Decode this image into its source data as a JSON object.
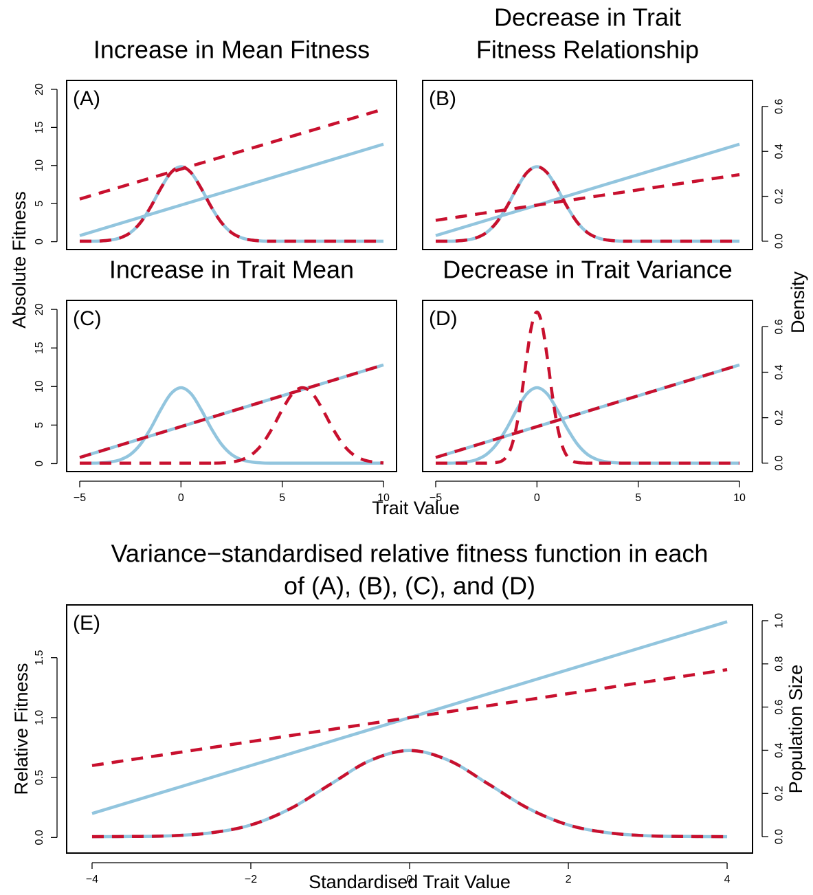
{
  "chart_data": [
    {
      "type": "line",
      "title": "Increase in Mean Fitness",
      "label": "(A)",
      "xlim": [
        -5.645,
        10.645
      ],
      "ylim": [
        -1.03,
        21.17
      ],
      "y2lim": [
        -0.037,
        0.716
      ],
      "yticks": [
        0,
        5,
        10,
        15,
        20
      ],
      "series": [
        {
          "color": "#92c5de",
          "style": "solid",
          "x": [
            -5,
            10
          ],
          "values": [
            0.8,
            12.8
          ]
        },
        {
          "color": "#92c5de",
          "style": "solid",
          "axis": "y2",
          "x": [
            -5,
            -4.5,
            -4,
            -3.5,
            -3,
            -2.5,
            -2,
            -1.5,
            -1,
            -0.5,
            0,
            0.5,
            1,
            1.5,
            2,
            2.5,
            3,
            3.5,
            4,
            4.5,
            5,
            10
          ],
          "values": [
            0,
            0,
            0.001,
            0.005,
            0.015,
            0.038,
            0.083,
            0.152,
            0.235,
            0.305,
            0.332,
            0.305,
            0.235,
            0.152,
            0.083,
            0.038,
            0.015,
            0.005,
            0.001,
            0,
            0,
            0
          ]
        },
        {
          "color": "#c8102e",
          "style": "dashed",
          "x": [
            -5,
            10
          ],
          "values": [
            5.6,
            17.4
          ]
        },
        {
          "color": "#c8102e",
          "style": "dashed",
          "axis": "y2",
          "x": [
            -5,
            -4.5,
            -4,
            -3.5,
            -3,
            -2.5,
            -2,
            -1.5,
            -1,
            -0.5,
            0,
            0.5,
            1,
            1.5,
            2,
            2.5,
            3,
            3.5,
            4,
            4.5,
            5,
            10
          ],
          "values": [
            0,
            0,
            0.001,
            0.005,
            0.015,
            0.038,
            0.083,
            0.152,
            0.235,
            0.305,
            0.332,
            0.305,
            0.235,
            0.152,
            0.083,
            0.038,
            0.015,
            0.005,
            0.001,
            0,
            0,
            0
          ]
        }
      ]
    },
    {
      "type": "line",
      "title": [
        "Decrease in Trait",
        "Fitness Relationship"
      ],
      "label": "(B)",
      "xlim": [
        -5.645,
        10.645
      ],
      "ylim": [
        -1.03,
        21.17
      ],
      "y2lim": [
        -0.037,
        0.716
      ],
      "y2ticks": [
        {
          "value": 0,
          "label": "0.0"
        },
        0.2,
        0.4,
        0.6
      ],
      "series": [
        {
          "color": "#92c5de",
          "style": "solid",
          "x": [
            -5,
            10
          ],
          "values": [
            0.8,
            12.8
          ]
        },
        {
          "color": "#92c5de",
          "style": "solid",
          "axis": "y2",
          "x": [
            -5,
            -4.5,
            -4,
            -3.5,
            -3,
            -2.5,
            -2,
            -1.5,
            -1,
            -0.5,
            0,
            0.5,
            1,
            1.5,
            2,
            2.5,
            3,
            3.5,
            4,
            4.5,
            5,
            10
          ],
          "values": [
            0,
            0,
            0.001,
            0.005,
            0.015,
            0.038,
            0.083,
            0.152,
            0.235,
            0.305,
            0.332,
            0.305,
            0.235,
            0.152,
            0.083,
            0.038,
            0.015,
            0.005,
            0.001,
            0,
            0,
            0
          ]
        },
        {
          "color": "#c8102e",
          "style": "dashed",
          "x": [
            -5,
            10
          ],
          "values": [
            2.8,
            8.8
          ]
        },
        {
          "color": "#c8102e",
          "style": "dashed",
          "axis": "y2",
          "x": [
            -5,
            -4.5,
            -4,
            -3.5,
            -3,
            -2.5,
            -2,
            -1.5,
            -1,
            -0.5,
            0,
            0.5,
            1,
            1.5,
            2,
            2.5,
            3,
            3.5,
            4,
            4.5,
            5,
            10
          ],
          "values": [
            0,
            0,
            0.001,
            0.005,
            0.015,
            0.038,
            0.083,
            0.152,
            0.235,
            0.305,
            0.332,
            0.305,
            0.235,
            0.152,
            0.083,
            0.038,
            0.015,
            0.005,
            0.001,
            0,
            0,
            0
          ]
        }
      ]
    },
    {
      "type": "line",
      "title": "Increase in Trait Mean",
      "label": "(C)",
      "xlim": [
        -5.645,
        10.645
      ],
      "ylim": [
        -1.03,
        21.17
      ],
      "y2lim": [
        -0.037,
        0.716
      ],
      "xticks": [
        {
          "value": -5,
          "label": "−5"
        },
        0,
        5,
        10
      ],
      "yticks": [
        0,
        5,
        10,
        15,
        20
      ],
      "series": [
        {
          "color": "#92c5de",
          "style": "solid",
          "x": [
            -5,
            10
          ],
          "values": [
            0.8,
            12.8
          ]
        },
        {
          "color": "#92c5de",
          "style": "solid",
          "axis": "y2",
          "x": [
            -5,
            -4.5,
            -4,
            -3.5,
            -3,
            -2.5,
            -2,
            -1.5,
            -1,
            -0.5,
            0,
            0.5,
            1,
            1.5,
            2,
            2.5,
            3,
            3.5,
            4,
            4.5,
            5,
            10
          ],
          "values": [
            0,
            0,
            0.001,
            0.005,
            0.015,
            0.038,
            0.083,
            0.152,
            0.235,
            0.305,
            0.332,
            0.305,
            0.235,
            0.152,
            0.083,
            0.038,
            0.015,
            0.005,
            0.001,
            0,
            0,
            0
          ]
        },
        {
          "color": "#c8102e",
          "style": "dashed",
          "x": [
            -5,
            10
          ],
          "values": [
            0.8,
            12.8
          ]
        },
        {
          "color": "#c8102e",
          "style": "dashed",
          "axis": "y2",
          "x": [
            -5,
            1,
            1.5,
            2,
            2.5,
            3,
            3.5,
            4,
            4.5,
            5,
            5.5,
            6,
            6.5,
            7,
            7.5,
            8,
            8.5,
            9,
            9.5,
            10
          ],
          "values": [
            0,
            0,
            0,
            0.001,
            0.005,
            0.015,
            0.038,
            0.083,
            0.152,
            0.235,
            0.305,
            0.332,
            0.305,
            0.235,
            0.152,
            0.083,
            0.038,
            0.015,
            0.005,
            0.001
          ]
        }
      ]
    },
    {
      "type": "line",
      "title": "Decrease in Trait Variance",
      "label": "(D)",
      "xlim": [
        -5.645,
        10.645
      ],
      "ylim": [
        -1.03,
        21.17
      ],
      "y2lim": [
        -0.037,
        0.716
      ],
      "xticks": [
        {
          "value": -5,
          "label": "−5"
        },
        0,
        5,
        10
      ],
      "y2ticks": [
        {
          "value": 0,
          "label": "0.0"
        },
        0.2,
        0.4,
        0.6
      ],
      "series": [
        {
          "color": "#92c5de",
          "style": "solid",
          "x": [
            -5,
            10
          ],
          "values": [
            0.8,
            12.8
          ]
        },
        {
          "color": "#92c5de",
          "style": "solid",
          "axis": "y2",
          "x": [
            -5,
            -4.5,
            -4,
            -3.5,
            -3,
            -2.5,
            -2,
            -1.5,
            -1,
            -0.5,
            0,
            0.5,
            1,
            1.5,
            2,
            2.5,
            3,
            3.5,
            4,
            4.5,
            5,
            10
          ],
          "values": [
            0,
            0,
            0.001,
            0.005,
            0.015,
            0.038,
            0.083,
            0.152,
            0.235,
            0.305,
            0.332,
            0.305,
            0.235,
            0.152,
            0.083,
            0.038,
            0.015,
            0.005,
            0.001,
            0,
            0,
            0
          ]
        },
        {
          "color": "#c8102e",
          "style": "dashed",
          "x": [
            -5,
            10
          ],
          "values": [
            0.8,
            12.8
          ]
        },
        {
          "color": "#c8102e",
          "style": "dashed",
          "axis": "y2",
          "x": [
            -5,
            -3,
            -2.75,
            -2.5,
            -2.25,
            -2,
            -1.75,
            -1.5,
            -1.25,
            -1,
            -0.75,
            -0.5,
            -0.25,
            0,
            0.25,
            0.5,
            0.75,
            1,
            1.25,
            1.5,
            1.75,
            2,
            2.25,
            2.5,
            2.75,
            3,
            10
          ],
          "values": [
            0,
            0,
            0,
            0,
            0.001,
            0.003,
            0.009,
            0.029,
            0.076,
            0.166,
            0.305,
            0.47,
            0.61,
            0.665,
            0.61,
            0.47,
            0.305,
            0.166,
            0.076,
            0.029,
            0.009,
            0.003,
            0.001,
            0,
            0,
            0,
            0
          ]
        }
      ]
    },
    {
      "type": "line",
      "title": [
        "Variance−standardised relative fitness function in each",
        "of (A), (B), (C), and (D)"
      ],
      "label": "(E)",
      "xlabel": "Standardised Trait Value",
      "ylabel": "Relative Fitness",
      "y2label": "Population Size",
      "xlim": [
        -4.32,
        4.32
      ],
      "ylim": [
        -0.13,
        1.94
      ],
      "y2lim": [
        -0.076,
        1.073
      ],
      "xticks": [
        {
          "value": -4,
          "label": "−4"
        },
        {
          "value": -2,
          "label": "−2"
        },
        0,
        2,
        4
      ],
      "yticks": [
        {
          "value": 0,
          "label": "0.0"
        },
        0.5,
        {
          "value": 1,
          "label": "1.0"
        },
        1.5
      ],
      "y2ticks": [
        {
          "value": 0,
          "label": "0.0"
        },
        0.2,
        0.4,
        0.6,
        0.8,
        {
          "value": 1,
          "label": "1.0"
        }
      ],
      "series": [
        {
          "color": "#92c5de",
          "style": "solid",
          "x": [
            -4,
            4
          ],
          "values": [
            0.2,
            1.8
          ]
        },
        {
          "color": "#92c5de",
          "style": "solid",
          "axis": "y2",
          "x": [
            -4,
            -3.5,
            -3,
            -2.5,
            -2,
            -1.5,
            -1,
            -0.5,
            0,
            0.5,
            1,
            1.5,
            2,
            2.5,
            3,
            3.5,
            4
          ],
          "values": [
            0,
            0.001,
            0.004,
            0.018,
            0.054,
            0.13,
            0.242,
            0.352,
            0.399,
            0.352,
            0.242,
            0.13,
            0.054,
            0.018,
            0.004,
            0.001,
            0
          ]
        },
        {
          "color": "#c8102e",
          "style": "dashed",
          "x": [
            -4,
            4
          ],
          "values": [
            0.6,
            1.4
          ]
        },
        {
          "color": "#c8102e",
          "style": "dashed",
          "axis": "y2",
          "x": [
            -4,
            -3.5,
            -3,
            -2.5,
            -2,
            -1.5,
            -1,
            -0.5,
            0,
            0.5,
            1,
            1.5,
            2,
            2.5,
            3,
            3.5,
            4
          ],
          "values": [
            0,
            0.001,
            0.004,
            0.018,
            0.054,
            0.13,
            0.242,
            0.352,
            0.399,
            0.352,
            0.242,
            0.13,
            0.054,
            0.018,
            0.004,
            0.001,
            0
          ]
        }
      ]
    }
  ],
  "shared_labels": {
    "ylabel": "Absolute Fitness",
    "y2label": "Density",
    "xlabel": "Trait Value"
  }
}
